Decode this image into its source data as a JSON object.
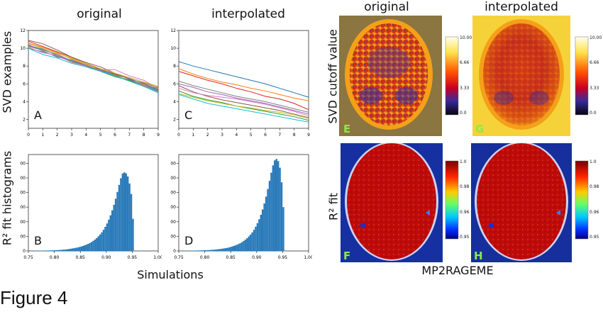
{
  "figure": {
    "caption": "Figure 4",
    "left_col_titles": [
      "original",
      "interpolated"
    ],
    "right_col_titles": [
      "original",
      "interpolated"
    ],
    "left_row_labels": [
      "SVD examples",
      "R² fit histograms"
    ],
    "right_row_labels": [
      "SVD cutoff value",
      "R² fit"
    ],
    "left_xtitle": "Simulations",
    "right_xtitle": "MP2RAGEME",
    "panel_letters": {
      "A": "A",
      "B": "B",
      "C": "C",
      "D": "D",
      "E": "E",
      "F": "F",
      "G": "G",
      "H": "H"
    },
    "svd_colorbar_ticks": [
      "10.00",
      "6.66",
      "3.33",
      "0.0"
    ],
    "r2_colorbar_ticks": [
      "1.0",
      "0.98",
      "0.96",
      "0.95"
    ],
    "colors": {
      "bar": "#2b7bba",
      "mri_background": "#0a0a1a"
    }
  },
  "chart_data": [
    {
      "type": "line",
      "panel": "A",
      "x": [
        0,
        1,
        2,
        3,
        4,
        5,
        6,
        7,
        8,
        9
      ],
      "xlim": [
        0,
        9
      ],
      "ylim": [
        1,
        12
      ],
      "xticks": [
        "0",
        "1",
        "2",
        "3",
        "4",
        "5",
        "6",
        "7",
        "8",
        "9"
      ],
      "yticks": [
        "2",
        "4",
        "6",
        "8",
        "10",
        "12"
      ],
      "series": [
        {
          "color": "#1f77b4",
          "values": [
            10.3,
            9.9,
            9.2,
            8.6,
            8.1,
            7.5,
            6.9,
            6.4,
            5.9,
            5.3
          ]
        },
        {
          "color": "#ff7f0e",
          "values": [
            10.6,
            10.1,
            9.5,
            8.8,
            8.2,
            7.7,
            7.0,
            6.3,
            5.9,
            5.5
          ]
        },
        {
          "color": "#2ca02c",
          "values": [
            10.0,
            9.6,
            9.1,
            8.5,
            8.0,
            7.4,
            6.8,
            6.4,
            5.8,
            5.2
          ]
        },
        {
          "color": "#d62728",
          "values": [
            10.8,
            10.2,
            9.6,
            9.0,
            8.3,
            7.6,
            7.1,
            6.6,
            6.0,
            5.4
          ]
        },
        {
          "color": "#9467bd",
          "values": [
            10.4,
            9.7,
            9.0,
            8.7,
            8.1,
            7.5,
            7.2,
            6.5,
            5.8,
            5.1
          ]
        },
        {
          "color": "#8c564b",
          "values": [
            10.9,
            10.5,
            9.8,
            9.0,
            8.4,
            7.9,
            7.2,
            6.5,
            6.1,
            5.6
          ]
        },
        {
          "color": "#e377c2",
          "values": [
            10.1,
            9.5,
            9.2,
            8.4,
            8.0,
            7.6,
            7.6,
            6.9,
            6.4,
            5.5
          ]
        },
        {
          "color": "#7f7f7f",
          "values": [
            10.2,
            9.8,
            9.3,
            8.6,
            8.0,
            7.6,
            7.0,
            6.6,
            6.0,
            5.4
          ]
        },
        {
          "color": "#bcbd22",
          "values": [
            10.5,
            10.0,
            9.4,
            8.9,
            8.3,
            7.7,
            7.2,
            6.7,
            6.2,
            5.7
          ]
        },
        {
          "color": "#17becf",
          "values": [
            10.0,
            9.3,
            8.9,
            8.3,
            7.9,
            7.4,
            6.9,
            6.3,
            5.7,
            5.0
          ]
        }
      ]
    },
    {
      "type": "line",
      "panel": "C",
      "x": [
        0,
        1,
        2,
        3,
        4,
        5,
        6,
        7,
        8,
        9
      ],
      "xlim": [
        0,
        9
      ],
      "ylim": [
        1,
        12
      ],
      "xticks": [
        "0",
        "1",
        "2",
        "3",
        "4",
        "5",
        "6",
        "7",
        "8",
        "9"
      ],
      "yticks": [
        "2",
        "4",
        "6",
        "8",
        "10",
        "12"
      ],
      "series": [
        {
          "color": "#1f77b4",
          "values": [
            8.5,
            8.0,
            7.6,
            7.2,
            6.8,
            6.4,
            6.0,
            5.5,
            5.0,
            4.5
          ]
        },
        {
          "color": "#ff7f0e",
          "values": [
            7.7,
            7.1,
            6.6,
            6.2,
            5.9,
            5.5,
            5.2,
            4.8,
            4.4,
            4.1
          ]
        },
        {
          "color": "#2ca02c",
          "values": [
            5.2,
            4.6,
            4.2,
            3.9,
            3.5,
            3.2,
            2.9,
            2.6,
            2.3,
            1.9
          ]
        },
        {
          "color": "#d62728",
          "values": [
            7.4,
            6.9,
            6.4,
            6.0,
            5.5,
            5.1,
            4.6,
            4.3,
            3.8,
            3.1
          ]
        },
        {
          "color": "#9467bd",
          "values": [
            6.0,
            5.6,
            5.1,
            4.8,
            4.4,
            4.1,
            3.8,
            3.4,
            3.0,
            2.6
          ]
        },
        {
          "color": "#8c564b",
          "values": [
            5.8,
            5.1,
            4.6,
            4.2,
            3.9,
            3.6,
            3.3,
            3.0,
            2.6,
            2.2
          ]
        },
        {
          "color": "#e377c2",
          "values": [
            5.5,
            5.0,
            4.7,
            4.5,
            4.3,
            4.0,
            3.7,
            3.3,
            2.9,
            2.4
          ]
        },
        {
          "color": "#7f7f7f",
          "values": [
            6.3,
            5.8,
            5.4,
            5.0,
            4.6,
            4.3,
            4.0,
            3.6,
            3.2,
            2.8
          ]
        },
        {
          "color": "#bcbd22",
          "values": [
            4.9,
            4.5,
            4.1,
            3.8,
            3.5,
            3.3,
            3.0,
            2.8,
            2.5,
            2.1
          ]
        },
        {
          "color": "#17becf",
          "values": [
            4.8,
            4.3,
            3.8,
            3.5,
            3.2,
            2.9,
            2.6,
            2.3,
            2.0,
            1.7
          ]
        }
      ]
    },
    {
      "type": "bar",
      "panel": "B",
      "xlim": [
        0.75,
        1.0
      ],
      "ylim": [
        0,
        6600
      ],
      "xticks": [
        "0.75",
        "0.80",
        "0.85",
        "0.90",
        "0.95",
        "1.00"
      ],
      "yticks": [
        "0",
        "1000",
        "2000",
        "3000",
        "4000",
        "5000",
        "6000"
      ],
      "bin_start": 0.75,
      "bin_width": 0.00333,
      "values": [
        0,
        0,
        10,
        10,
        15,
        15,
        20,
        20,
        25,
        25,
        30,
        30,
        35,
        40,
        45,
        50,
        55,
        60,
        70,
        80,
        90,
        100,
        115,
        130,
        150,
        170,
        190,
        215,
        240,
        270,
        300,
        340,
        380,
        430,
        480,
        540,
        610,
        690,
        780,
        880,
        1000,
        1130,
        1280,
        1450,
        1650,
        1880,
        2140,
        2440,
        2780,
        3160,
        3580,
        4040,
        4520,
        4980,
        5300,
        5380,
        5310,
        5100,
        4620,
        3900,
        2200
      ]
    },
    {
      "type": "bar",
      "panel": "D",
      "xlim": [
        0.75,
        1.0
      ],
      "ylim": [
        0,
        6600
      ],
      "xticks": [
        "0.75",
        "0.80",
        "0.85",
        "0.90",
        "0.95",
        "1.00"
      ],
      "yticks": [
        "0",
        "1000",
        "2000",
        "3000",
        "4000",
        "5000",
        "6000"
      ],
      "bin_start": 0.75,
      "bin_width": 0.00333,
      "values": [
        0,
        0,
        10,
        10,
        15,
        15,
        20,
        20,
        25,
        25,
        30,
        30,
        35,
        40,
        45,
        50,
        55,
        60,
        70,
        80,
        90,
        100,
        110,
        125,
        140,
        160,
        180,
        200,
        225,
        255,
        290,
        330,
        370,
        420,
        470,
        530,
        600,
        680,
        770,
        870,
        990,
        1120,
        1270,
        1450,
        1660,
        1900,
        2170,
        2480,
        2840,
        3250,
        3720,
        4240,
        4800,
        5360,
        5860,
        6200,
        6300,
        6150,
        5700,
        4700,
        3000
      ]
    }
  ]
}
